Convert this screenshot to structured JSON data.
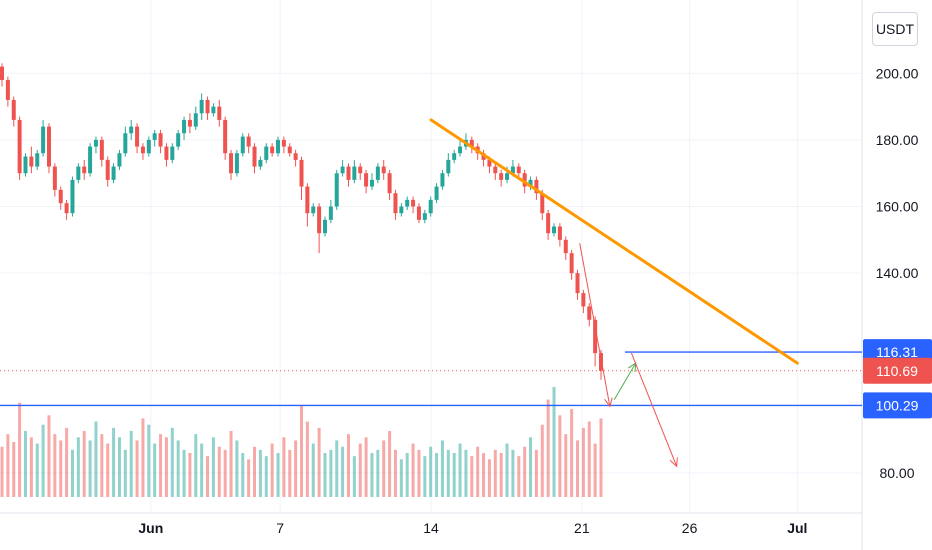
{
  "currency": "USDT",
  "chart_data": {
    "type": "candlestick",
    "title": "",
    "xlabel": "",
    "ylabel": "",
    "ylim": [
      68,
      222
    ],
    "xlim": [
      "2021-05-25",
      "2021-07-04"
    ],
    "grid": true,
    "y_ticks": [
      "80.00",
      "140.00",
      "160.00",
      "180.00",
      "200.00"
    ],
    "x_ticks": [
      {
        "label": "Jun",
        "date": "2021-06-01"
      },
      {
        "label": "7",
        "date": "2021-06-07"
      },
      {
        "label": "14",
        "date": "2021-06-14"
      },
      {
        "label": "21",
        "date": "2021-06-21"
      },
      {
        "label": "26",
        "date": "2021-06-26"
      },
      {
        "label": "Jul",
        "date": "2021-07-01"
      }
    ],
    "price_tags": [
      {
        "value": "116.31",
        "level": 116.31,
        "color": "#2962ff"
      },
      {
        "value": "110.69",
        "level": 110.69,
        "color": "#ef5350"
      },
      {
        "value": "100.29",
        "level": 100.29,
        "color": "#2962ff"
      }
    ],
    "horizontal_lines": [
      {
        "level": 116.31,
        "from": "2021-06-23",
        "color": "#2962ff"
      },
      {
        "level": 100.29,
        "from": "2021-05-25",
        "color": "#2962ff"
      }
    ],
    "current_price": 110.69,
    "trendline": {
      "from": [
        "2021-06-14",
        186
      ],
      "to": [
        "2021-07-01",
        113
      ],
      "color": "#ff9800"
    },
    "arrows": [
      {
        "from": [
          "2021-06-20.9",
          149
        ],
        "to": [
          "2021-06-22.3",
          100
        ],
        "color": "#ef5350"
      },
      {
        "from": [
          "2021-06-22.5",
          102
        ],
        "to": [
          "2021-06-23.5",
          113
        ],
        "color": "#4caf50"
      },
      {
        "from": [
          "2021-06-23.3",
          116
        ],
        "to": [
          "2021-06-25.4",
          82
        ],
        "color": "#ef5350"
      }
    ],
    "ohlc": [
      [
        202,
        198,
        203,
        196
      ],
      [
        198,
        192,
        199,
        190
      ],
      [
        192,
        186,
        193,
        184
      ],
      [
        186,
        170,
        187,
        168
      ],
      [
        170,
        175,
        176,
        169
      ],
      [
        175,
        172,
        178,
        170
      ],
      [
        172,
        176,
        177,
        171
      ],
      [
        176,
        184,
        186,
        175
      ],
      [
        184,
        172,
        185,
        170
      ],
      [
        172,
        165,
        173,
        163
      ],
      [
        165,
        161,
        166,
        159
      ],
      [
        161,
        158,
        162,
        156
      ],
      [
        158,
        168,
        169,
        157
      ],
      [
        168,
        172,
        173,
        167
      ],
      [
        172,
        170,
        174,
        168
      ],
      [
        170,
        178,
        179,
        169
      ],
      [
        178,
        180,
        181,
        176
      ],
      [
        180,
        174,
        181,
        172
      ],
      [
        174,
        168,
        175,
        166
      ],
      [
        168,
        172,
        173,
        167
      ],
      [
        172,
        176,
        177,
        171
      ],
      [
        176,
        182,
        184,
        175
      ],
      [
        182,
        184,
        186,
        180
      ],
      [
        184,
        178,
        185,
        176
      ],
      [
        178,
        176,
        179,
        174
      ],
      [
        176,
        180,
        181,
        175
      ],
      [
        180,
        182,
        183,
        178
      ],
      [
        182,
        178,
        183,
        176
      ],
      [
        178,
        174,
        179,
        172
      ],
      [
        174,
        178,
        179,
        173
      ],
      [
        178,
        182,
        183,
        177
      ],
      [
        182,
        186,
        187,
        180
      ],
      [
        186,
        184,
        188,
        182
      ],
      [
        184,
        188,
        190,
        183
      ],
      [
        188,
        192,
        194,
        186
      ],
      [
        192,
        188,
        193,
        186
      ],
      [
        188,
        190,
        191,
        187
      ],
      [
        190,
        186,
        192,
        184
      ],
      [
        186,
        176,
        187,
        174
      ],
      [
        176,
        170,
        177,
        168
      ],
      [
        170,
        176,
        177,
        169
      ],
      [
        176,
        181,
        182,
        175
      ],
      [
        181,
        178,
        182,
        176
      ],
      [
        178,
        172,
        179,
        170
      ],
      [
        172,
        174,
        175,
        171
      ],
      [
        174,
        178,
        179,
        173
      ],
      [
        178,
        176,
        179,
        175
      ],
      [
        176,
        180,
        181,
        175
      ],
      [
        180,
        178,
        181,
        176
      ],
      [
        178,
        176,
        179,
        175
      ],
      [
        176,
        174,
        177,
        172
      ],
      [
        174,
        166,
        175,
        162
      ],
      [
        166,
        158,
        167,
        154
      ],
      [
        158,
        160,
        161,
        157
      ],
      [
        160,
        152,
        161,
        146
      ],
      [
        152,
        156,
        157,
        151
      ],
      [
        156,
        160,
        162,
        155
      ],
      [
        160,
        170,
        171,
        159
      ],
      [
        170,
        172,
        174,
        169
      ],
      [
        172,
        168,
        173,
        166
      ],
      [
        168,
        172,
        174,
        167
      ],
      [
        172,
        170,
        173,
        168
      ],
      [
        170,
        166,
        171,
        164
      ],
      [
        166,
        168,
        170,
        165
      ],
      [
        168,
        172,
        173,
        167
      ],
      [
        172,
        170,
        174,
        168
      ],
      [
        170,
        164,
        171,
        162
      ],
      [
        164,
        158,
        165,
        156
      ],
      [
        158,
        160,
        161,
        157
      ],
      [
        160,
        162,
        163,
        159
      ],
      [
        162,
        160,
        163,
        158
      ],
      [
        160,
        156,
        161,
        155
      ],
      [
        156,
        158,
        159,
        155
      ],
      [
        158,
        162,
        163,
        157
      ],
      [
        162,
        166,
        167,
        161
      ],
      [
        166,
        170,
        171,
        165
      ],
      [
        170,
        174,
        176,
        169
      ],
      [
        174,
        176,
        177,
        173
      ],
      [
        176,
        178,
        180,
        175
      ],
      [
        178,
        180,
        182,
        177
      ],
      [
        180,
        178,
        181,
        176
      ],
      [
        178,
        176,
        179,
        174
      ],
      [
        176,
        174,
        177,
        172
      ],
      [
        174,
        172,
        175,
        170
      ],
      [
        172,
        170,
        173,
        168
      ],
      [
        170,
        168,
        171,
        166
      ],
      [
        168,
        170,
        172,
        167
      ],
      [
        170,
        172,
        174,
        169
      ],
      [
        172,
        170,
        173,
        168
      ],
      [
        170,
        166,
        171,
        164
      ],
      [
        166,
        168,
        169,
        165
      ],
      [
        168,
        164,
        169,
        162
      ],
      [
        164,
        158,
        165,
        156
      ],
      [
        158,
        152,
        159,
        150
      ],
      [
        152,
        154,
        155,
        151
      ],
      [
        154,
        150,
        155,
        148
      ],
      [
        150,
        146,
        151,
        144
      ],
      [
        146,
        140,
        147,
        138
      ],
      [
        140,
        134,
        141,
        132
      ],
      [
        134,
        130,
        135,
        128
      ],
      [
        130,
        126,
        131,
        124
      ],
      [
        126,
        116,
        127,
        112
      ],
      [
        116,
        110.69,
        117,
        108
      ]
    ],
    "volume_note": "volume histogram in lower pane",
    "volumes": [
      32,
      40,
      35,
      60,
      42,
      38,
      34,
      46,
      52,
      40,
      36,
      44,
      30,
      38,
      42,
      36,
      48,
      40,
      34,
      44,
      38,
      30,
      42,
      36,
      50,
      46,
      34,
      40,
      38,
      44,
      36,
      30,
      28,
      40,
      34,
      26,
      38,
      32,
      30,
      42,
      36,
      28,
      24,
      32,
      30,
      26,
      34,
      28,
      38,
      30,
      36,
      58,
      48,
      34,
      44,
      28,
      30,
      36,
      32,
      40,
      26,
      34,
      38,
      28,
      30,
      36,
      42,
      30,
      24,
      28,
      34,
      30,
      26,
      32,
      28,
      36,
      30,
      28,
      34,
      30,
      26,
      32,
      28,
      24,
      30,
      28,
      34,
      30,
      26,
      32,
      38,
      30,
      46,
      62,
      70,
      52,
      40,
      56,
      36,
      44,
      48,
      34,
      50
    ]
  }
}
